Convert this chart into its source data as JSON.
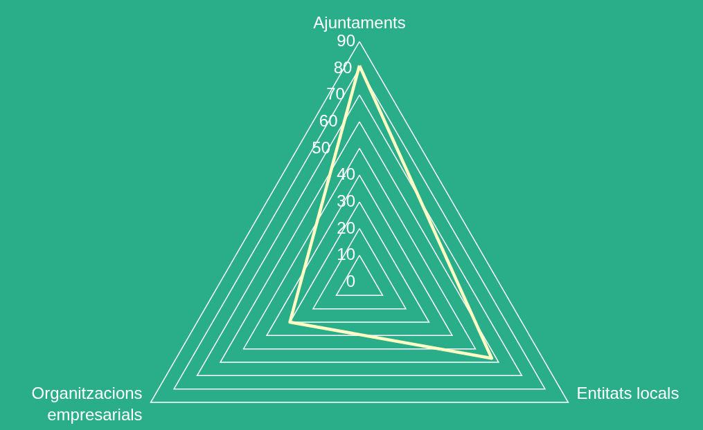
{
  "chart_data": {
    "type": "radar",
    "categories": [
      "Ajuntaments",
      "Entitats locals",
      "Organitzacions empresarials"
    ],
    "series": [
      {
        "color": "#fffcc4",
        "values": [
          81,
          57,
          30
        ]
      }
    ],
    "ylim": [
      0,
      90
    ],
    "yticks": [
      0,
      10,
      20,
      30,
      40,
      50,
      60,
      70,
      80,
      90
    ],
    "grid": true
  }
}
